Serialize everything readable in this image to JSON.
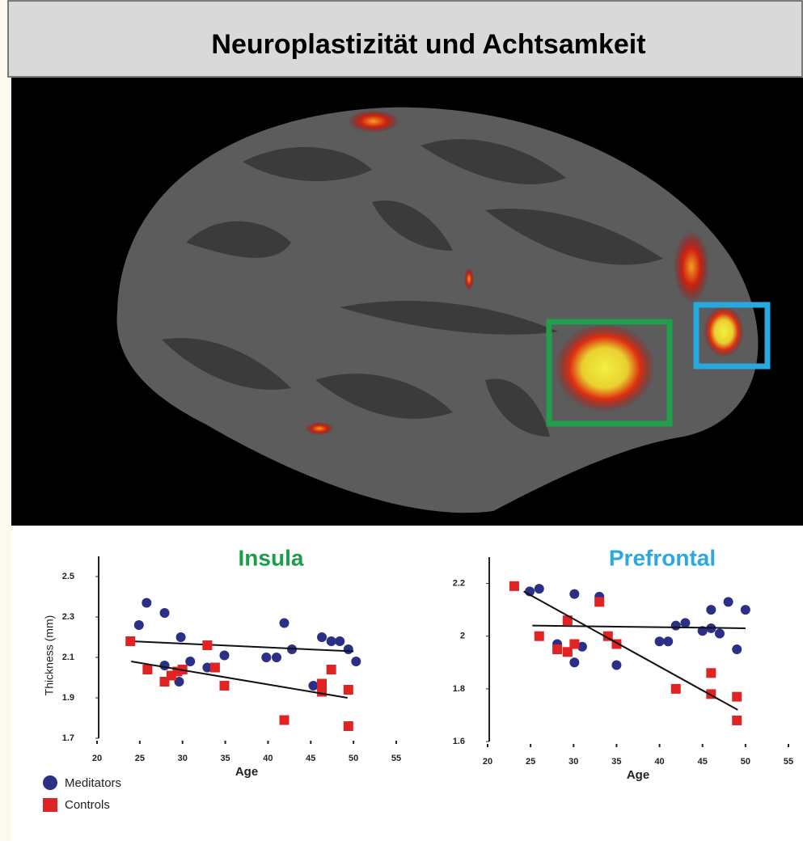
{
  "title": "Neuroplastizität und Achtsamkeit",
  "chart_data": [
    {
      "type": "scatter",
      "title": "Insula",
      "title_color": "#1a9e48",
      "x_label": "Age",
      "y_label": "Thickness (mm)",
      "xlim": [
        20,
        55
      ],
      "ylim": [
        1.7,
        2.6
      ],
      "xticks": [
        20,
        25,
        30,
        35,
        40,
        45,
        50,
        55
      ],
      "yticks": [
        1.7,
        1.9,
        2.1,
        2.3,
        2.5
      ],
      "series": [
        {
          "name": "Meditators",
          "color": "#2b2f86",
          "marker": "circle",
          "x": [
            24.9,
            25.8,
            27.9,
            29.8,
            27.9,
            29.6,
            30.9,
            32.9,
            34.9,
            39.8,
            41,
            41.9,
            42.8,
            45.3,
            46.3,
            47.4,
            48.4,
            49.4,
            50.3
          ],
          "values": [
            2.26,
            2.37,
            2.32,
            2.2,
            2.06,
            1.98,
            2.08,
            2.05,
            2.11,
            2.1,
            2.1,
            2.27,
            2.14,
            1.96,
            2.2,
            2.18,
            2.18,
            2.14,
            2.08
          ],
          "trendline": {
            "x": [
              24,
              50
            ],
            "y": [
              2.18,
              2.13
            ]
          }
        },
        {
          "name": "Controls",
          "color": "#e02424",
          "marker": "square",
          "x": [
            23.9,
            25.9,
            27.9,
            28.7,
            29.4,
            30,
            32.9,
            33.8,
            34.9,
            41.9,
            46.3,
            46.3,
            47.4,
            49.4,
            49.4
          ],
          "values": [
            2.18,
            2.04,
            1.98,
            2.01,
            2.03,
            2.04,
            2.16,
            2.05,
            1.96,
            1.79,
            1.97,
            1.93,
            2.04,
            1.94,
            1.76
          ],
          "trendline": {
            "x": [
              24,
              49.3
            ],
            "y": [
              2.08,
              1.9
            ]
          }
        }
      ]
    },
    {
      "type": "scatter",
      "title": "Prefrontal",
      "title_color": "#2aa8df",
      "x_label": "Age",
      "xlim": [
        20,
        55
      ],
      "ylim": [
        1.6,
        2.3
      ],
      "xticks": [
        20,
        25,
        30,
        35,
        40,
        45,
        50,
        55
      ],
      "yticks": [
        1.6,
        1.8,
        2,
        2.2
      ],
      "series": [
        {
          "name": "Meditators",
          "color": "#2b2f86",
          "marker": "circle",
          "x": [
            24.9,
            26,
            28.1,
            30.1,
            30.1,
            31,
            33,
            35,
            40,
            41,
            41.9,
            43,
            45,
            46,
            46,
            47,
            48,
            49,
            50
          ],
          "values": [
            2.17,
            2.18,
            1.97,
            2.16,
            1.9,
            1.96,
            2.15,
            1.89,
            1.98,
            1.98,
            2.04,
            2.05,
            2.02,
            2.1,
            2.03,
            2.01,
            2.13,
            1.95,
            2.1
          ],
          "trendline": {
            "x": [
              25.2,
              50
            ],
            "y": [
              2.04,
              2.03
            ]
          }
        },
        {
          "name": "Controls",
          "color": "#e02424",
          "marker": "square",
          "x": [
            23.1,
            26,
            28.1,
            29.3,
            29.3,
            30.1,
            33,
            34,
            35,
            41.9,
            46,
            46,
            49,
            49
          ],
          "values": [
            2.19,
            2.0,
            1.95,
            1.94,
            2.06,
            1.97,
            2.13,
            2.0,
            1.97,
            1.8,
            1.86,
            1.78,
            1.77,
            1.68
          ],
          "trendline": {
            "x": [
              24.2,
              49.1
            ],
            "y": [
              2.17,
              1.72
            ]
          }
        }
      ]
    }
  ]
}
